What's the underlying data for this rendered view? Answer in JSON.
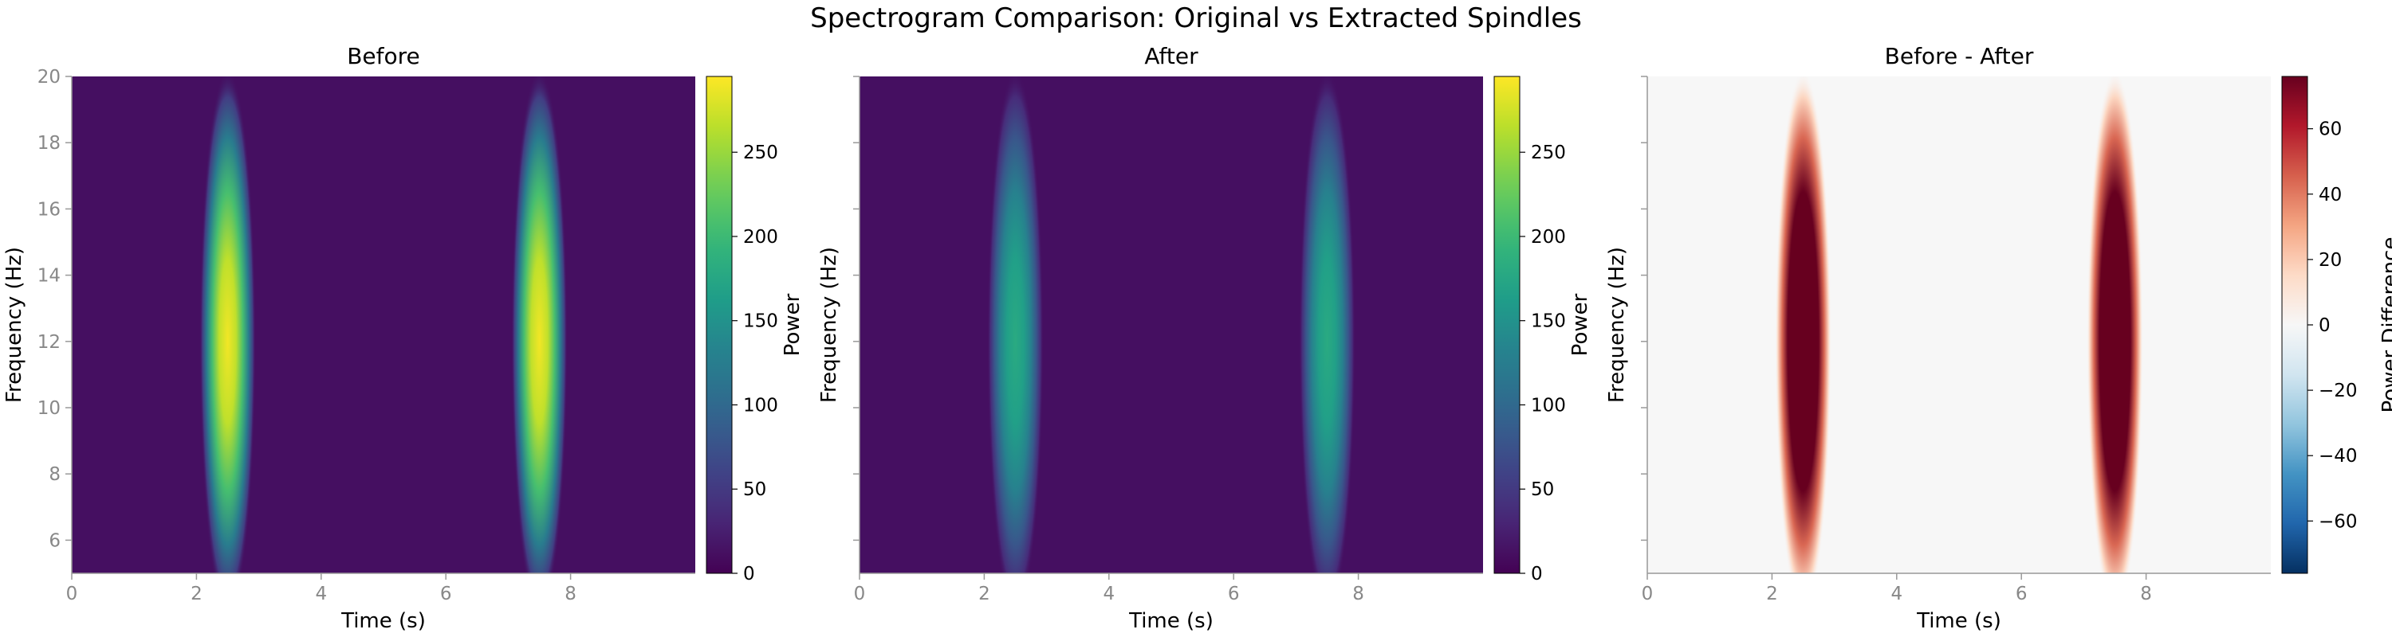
{
  "figure": {
    "title": "Spectrogram Comparison: Original vs Extracted Spindles"
  },
  "chart_data": [
    {
      "type": "heatmap",
      "title": "Before",
      "xlabel": "Time (s)",
      "ylabel": "Frequency (Hz)",
      "xlim": [
        0,
        10
      ],
      "ylim": [
        5,
        20
      ],
      "xticks": [
        0,
        2,
        4,
        6,
        8
      ],
      "yticks": [
        6,
        8,
        10,
        12,
        14,
        16,
        18,
        20
      ],
      "show_yticklabels": true,
      "colormap": "viridis",
      "colorbar": {
        "label": "Power",
        "range": [
          0,
          295
        ],
        "ticks": [
          0,
          50,
          100,
          150,
          200,
          250
        ]
      },
      "baseline": 12,
      "spindles": [
        {
          "time": 2.5,
          "freq_center": 12,
          "peak_power": 290
        },
        {
          "time": 7.5,
          "freq_center": 12,
          "peak_power": 290
        }
      ]
    },
    {
      "type": "heatmap",
      "title": "After",
      "xlabel": "Time (s)",
      "ylabel": "Frequency (Hz)",
      "xlim": [
        0,
        10
      ],
      "ylim": [
        5,
        20
      ],
      "xticks": [
        0,
        2,
        4,
        6,
        8
      ],
      "yticks": [
        6,
        8,
        10,
        12,
        14,
        16,
        18,
        20
      ],
      "show_yticklabels": false,
      "colormap": "viridis",
      "colorbar": {
        "label": "Power",
        "range": [
          0,
          295
        ],
        "ticks": [
          0,
          50,
          100,
          150,
          200,
          250
        ]
      },
      "baseline": 12,
      "spindles": [
        {
          "time": 2.5,
          "freq_center": 12,
          "peak_power": 180
        },
        {
          "time": 7.5,
          "freq_center": 12,
          "peak_power": 180
        }
      ]
    },
    {
      "type": "heatmap",
      "title": "Before - After",
      "xlabel": "Time (s)",
      "ylabel": "Frequency (Hz)",
      "xlim": [
        0,
        10
      ],
      "ylim": [
        5,
        20
      ],
      "xticks": [
        0,
        2,
        4,
        6,
        8
      ],
      "yticks": [
        6,
        8,
        10,
        12,
        14,
        16,
        18,
        20
      ],
      "show_yticklabels": false,
      "colormap": "RdBu_r",
      "colorbar": {
        "label": "Power Difference",
        "range": [
          -76,
          76
        ],
        "ticks": [
          -60,
          -40,
          -20,
          0,
          20,
          40,
          60
        ]
      },
      "baseline": 0,
      "spindles": [
        {
          "time": 2.5,
          "freq_center": 12,
          "peak_power": 110
        },
        {
          "time": 7.5,
          "freq_center": 12,
          "peak_power": 110
        }
      ]
    }
  ]
}
